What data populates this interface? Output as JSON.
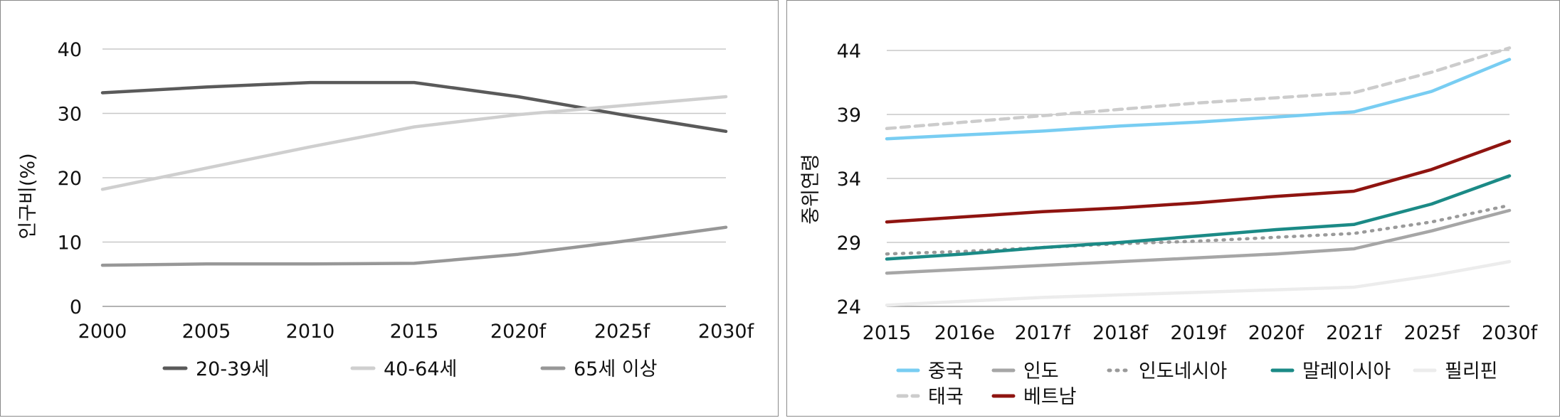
{
  "chart_data": [
    {
      "type": "line",
      "title": "",
      "xlabel": "",
      "ylabel": "인구비(%)",
      "categories": [
        "2000",
        "2005",
        "2010",
        "2015",
        "2020f",
        "2025f",
        "2030f"
      ],
      "yticks": [
        "0",
        "10",
        "20",
        "30",
        "40"
      ],
      "ylim": [
        0,
        40
      ],
      "grid": true,
      "legend": "bottom",
      "series": [
        {
          "name": "20-39세",
          "values": [
            33.2,
            34.1,
            34.8,
            34.8,
            32.6,
            29.8,
            27.2
          ],
          "color": "#5a5a5a",
          "dash": "solid"
        },
        {
          "name": "40-64세",
          "values": [
            18.2,
            21.5,
            24.8,
            27.9,
            29.8,
            31.2,
            32.6
          ],
          "color": "#cfcfcf",
          "dash": "solid"
        },
        {
          "name": "65세 이상",
          "values": [
            6.4,
            6.6,
            6.6,
            6.7,
            8.1,
            10.1,
            12.3
          ],
          "color": "#979797",
          "dash": "solid"
        }
      ]
    },
    {
      "type": "line",
      "title": "",
      "xlabel": "",
      "ylabel": "중위연령",
      "categories": [
        "2015",
        "2016e",
        "2017f",
        "2018f",
        "2019f",
        "2020f",
        "2021f",
        "2025f",
        "2030f"
      ],
      "yticks": [
        "24",
        "29",
        "34",
        "39",
        "44"
      ],
      "ylim": [
        24,
        44
      ],
      "grid": true,
      "legend": "bottom",
      "series": [
        {
          "name": "중국",
          "values": [
            37.1,
            37.4,
            37.7,
            38.1,
            38.4,
            38.8,
            39.2,
            40.8,
            43.3
          ],
          "color": "#78cdf2",
          "dash": "solid"
        },
        {
          "name": "인도",
          "values": [
            26.6,
            26.9,
            27.2,
            27.5,
            27.8,
            28.1,
            28.5,
            29.9,
            31.5
          ],
          "color": "#a6a6a6",
          "dash": "solid"
        },
        {
          "name": "인도네시아",
          "values": [
            28.1,
            28.3,
            28.6,
            28.9,
            29.1,
            29.4,
            29.7,
            30.6,
            31.9
          ],
          "color": "#9a9a9a",
          "dash": "dot"
        },
        {
          "name": "말레이시아",
          "values": [
            27.7,
            28.1,
            28.6,
            29.0,
            29.5,
            30.0,
            30.4,
            32.0,
            34.2
          ],
          "color": "#1b8a86",
          "dash": "solid"
        },
        {
          "name": "필리핀",
          "values": [
            24.1,
            24.4,
            24.7,
            24.9,
            25.1,
            25.3,
            25.5,
            26.4,
            27.5
          ],
          "color": "#ececec",
          "dash": "solid"
        },
        {
          "name": "태국",
          "values": [
            37.9,
            38.4,
            38.9,
            39.4,
            39.9,
            40.3,
            40.7,
            42.3,
            44.2
          ],
          "color": "#cccccc",
          "dash": "dash"
        },
        {
          "name": "베트남",
          "values": [
            30.6,
            31.0,
            31.4,
            31.7,
            32.1,
            32.6,
            33.0,
            34.7,
            36.9
          ],
          "color": "#8f1410",
          "dash": "solid"
        }
      ]
    }
  ]
}
